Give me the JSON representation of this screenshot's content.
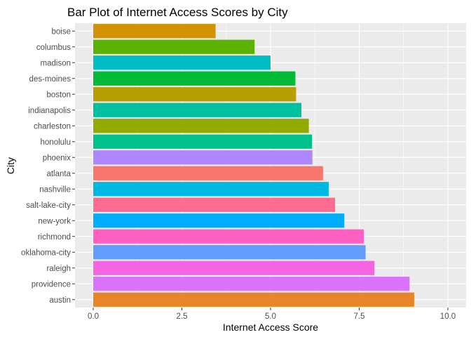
{
  "chart_data": {
    "type": "bar",
    "orientation": "horizontal",
    "title": "Bar Plot of Internet Access Scores by City",
    "xlabel": "Internet Access Score",
    "ylabel": "City",
    "xlim": [
      0,
      10.4
    ],
    "x_ticks": [
      "0.0",
      "2.5",
      "5.0",
      "7.5",
      "10.0"
    ],
    "x_tick_values": [
      0,
      2.5,
      5,
      7.5,
      10
    ],
    "grid": true,
    "legend": "none",
    "categories": [
      "boise",
      "columbus",
      "madison",
      "des-moines",
      "boston",
      "indianapolis",
      "charleston",
      "honolulu",
      "phoenix",
      "atlanta",
      "nashville",
      "salt-lake-city",
      "new-york",
      "richmond",
      "oklahoma-city",
      "raleigh",
      "providence",
      "austin"
    ],
    "values": [
      3.45,
      4.55,
      5.0,
      5.7,
      5.72,
      5.87,
      6.08,
      6.17,
      6.18,
      6.48,
      6.64,
      6.82,
      7.08,
      7.63,
      7.68,
      7.93,
      8.92,
      9.05
    ],
    "colors": [
      "#D39200",
      "#5BB300",
      "#00BFC4",
      "#00BA38",
      "#B79F00",
      "#00C19F",
      "#93AA00",
      "#00C08B",
      "#AE87FF",
      "#F8766D",
      "#00B9E3",
      "#FF6C91",
      "#00ADFA",
      "#FF61C3",
      "#619CFF",
      "#F564E3",
      "#DB72FB",
      "#E88526"
    ]
  }
}
